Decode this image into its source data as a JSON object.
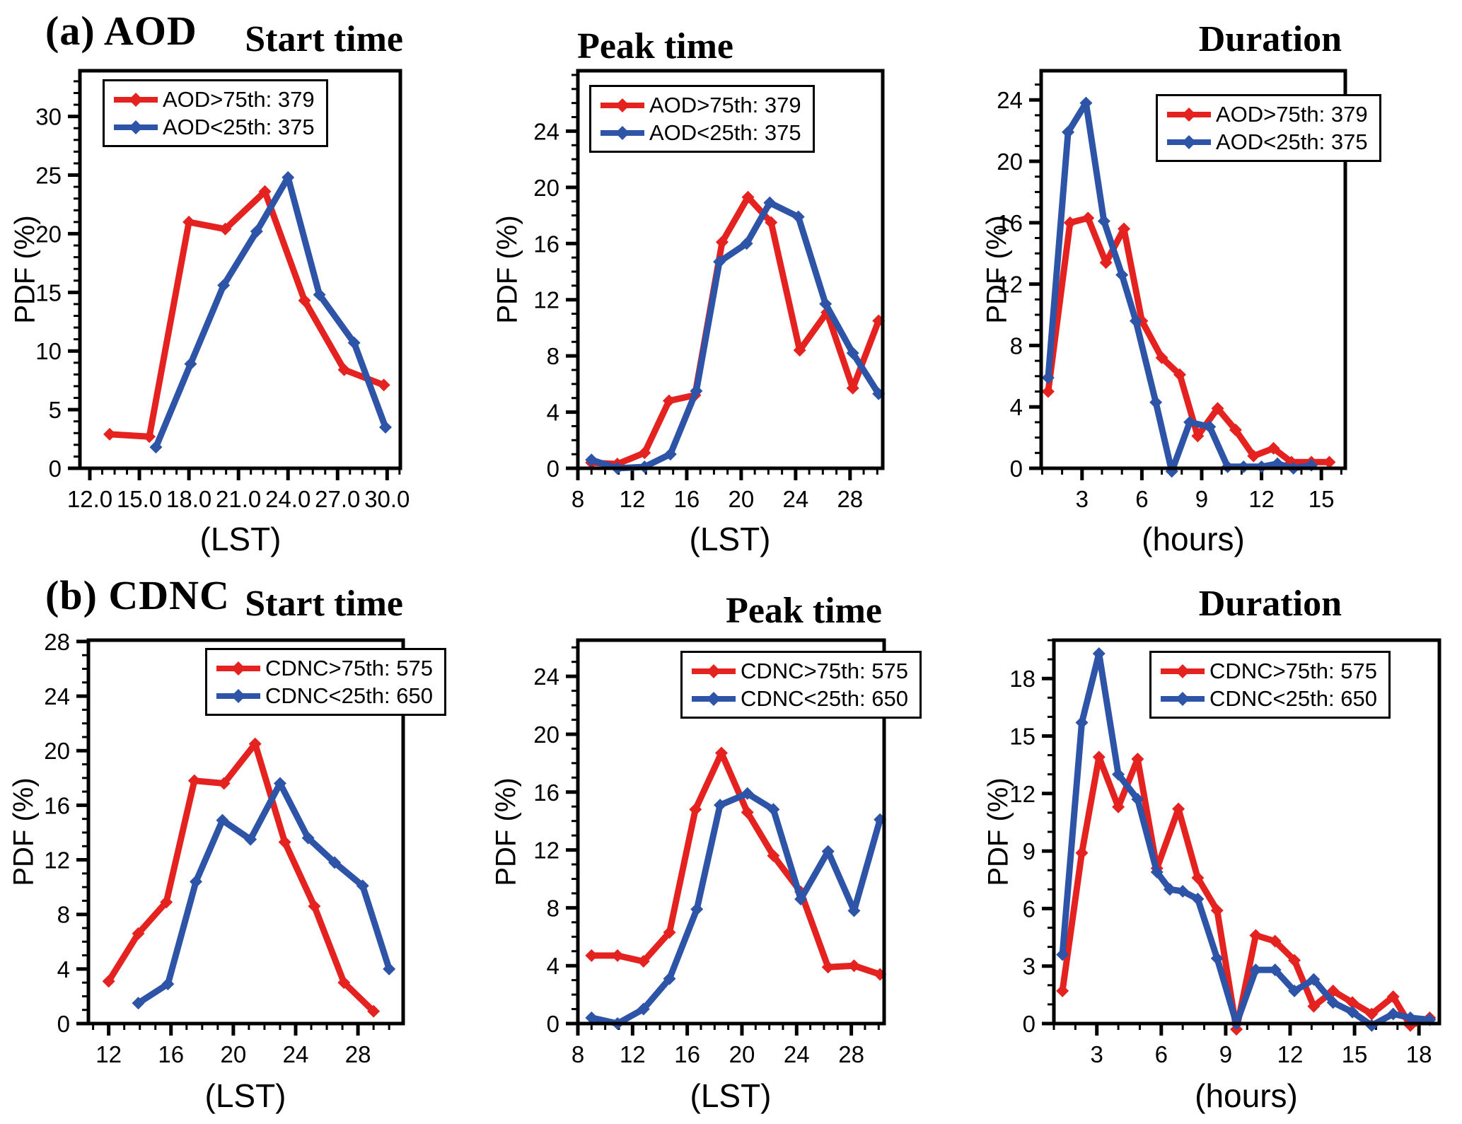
{
  "rows": [
    {
      "label": "(a) AOD"
    },
    {
      "label": "(b) CDNC"
    }
  ],
  "colors": {
    "high_series": "#e42320",
    "low_series": "#2d54a6",
    "axis": "#000000"
  },
  "chart_data": [
    {
      "id": "a-start",
      "type": "line",
      "title": "Start time",
      "xlabel": "(LST)",
      "ylabel": "PDF (%)",
      "xlim": [
        11.4,
        30.8
      ],
      "ylim": [
        0,
        33.9
      ],
      "xticks": {
        "values": [
          12,
          15,
          18,
          21,
          24,
          27,
          30
        ],
        "labels": [
          "12.0",
          "15.0",
          "18.0",
          "21.0",
          "24.0",
          "27.0",
          "30.0"
        ]
      },
      "yticks": [
        0,
        5,
        10,
        15,
        20,
        25,
        30
      ],
      "x_minor": 0.75,
      "y_minor": 1,
      "grid": false,
      "legend_pos": "top-left",
      "series": [
        {
          "name": "AOD>75th: 379",
          "color": "#e42320",
          "points": [
            [
              13.2,
              2.9
            ],
            [
              15.6,
              2.7
            ],
            [
              18.0,
              21.0
            ],
            [
              20.2,
              20.4
            ],
            [
              22.6,
              23.6
            ],
            [
              25.0,
              14.3
            ],
            [
              27.4,
              8.4
            ],
            [
              29.8,
              7.1
            ]
          ]
        },
        {
          "name": "AOD<25th: 375",
          "color": "#2d54a6",
          "points": [
            [
              16.0,
              1.8
            ],
            [
              18.1,
              8.9
            ],
            [
              20.1,
              15.6
            ],
            [
              22.1,
              20.2
            ],
            [
              24.0,
              24.8
            ],
            [
              25.9,
              14.8
            ],
            [
              28.0,
              10.7
            ],
            [
              29.9,
              3.5
            ]
          ]
        }
      ]
    },
    {
      "id": "a-peak",
      "type": "line",
      "title": "Peak time",
      "xlabel": "(LST)",
      "ylabel": "PDF (%)",
      "xlim": [
        8,
        30.4
      ],
      "ylim": [
        0,
        28.3
      ],
      "xticks": {
        "values": [
          8,
          12,
          16,
          20,
          24,
          28
        ],
        "labels": [
          "8",
          "12",
          "16",
          "20",
          "24",
          "28"
        ]
      },
      "yticks": [
        0,
        4,
        8,
        12,
        16,
        20,
        24
      ],
      "x_minor": 1,
      "y_minor": 1,
      "grid": false,
      "legend_pos": "top-left",
      "series": [
        {
          "name": "AOD>75th: 379",
          "color": "#e42320",
          "points": [
            [
              9.0,
              0.4
            ],
            [
              10.9,
              0.3
            ],
            [
              12.9,
              1.1
            ],
            [
              14.7,
              4.8
            ],
            [
              16.6,
              5.2
            ],
            [
              18.6,
              16.1
            ],
            [
              20.5,
              19.3
            ],
            [
              22.2,
              17.5
            ],
            [
              24.3,
              8.4
            ],
            [
              26.3,
              11.1
            ],
            [
              28.2,
              5.7
            ],
            [
              30.1,
              10.5
            ]
          ]
        },
        {
          "name": "AOD<25th: 375",
          "color": "#2d54a6",
          "points": [
            [
              9.0,
              0.6
            ],
            [
              10.9,
              0.0
            ],
            [
              12.9,
              0.1
            ],
            [
              14.8,
              1.0
            ],
            [
              16.7,
              5.5
            ],
            [
              18.4,
              14.7
            ],
            [
              20.4,
              16.0
            ],
            [
              22.1,
              18.9
            ],
            [
              24.2,
              17.9
            ],
            [
              26.2,
              11.7
            ],
            [
              28.2,
              8.2
            ],
            [
              30.1,
              5.3
            ]
          ]
        }
      ]
    },
    {
      "id": "a-duration",
      "type": "line",
      "title": "Duration",
      "xlabel": "(hours)",
      "ylabel": "PDF (%)",
      "xlim": [
        0.95,
        16.2
      ],
      "ylim": [
        0,
        25.9
      ],
      "xticks": {
        "values": [
          3,
          6,
          9,
          12,
          15
        ],
        "labels": [
          "3",
          "6",
          "9",
          "12",
          "15"
        ]
      },
      "yticks": [
        0,
        4,
        8,
        12,
        16,
        20,
        24
      ],
      "x_minor": 1,
      "y_minor": 1,
      "grid": false,
      "legend_pos": "top-right",
      "series": [
        {
          "name": "AOD>75th: 379",
          "color": "#e42320",
          "points": [
            [
              1.3,
              5.0
            ],
            [
              2.4,
              16.0
            ],
            [
              3.3,
              16.3
            ],
            [
              4.2,
              13.4
            ],
            [
              5.1,
              15.6
            ],
            [
              6.0,
              9.6
            ],
            [
              7.0,
              7.2
            ],
            [
              7.9,
              6.1
            ],
            [
              8.8,
              2.1
            ],
            [
              9.8,
              3.9
            ],
            [
              10.7,
              2.5
            ],
            [
              11.6,
              0.8
            ],
            [
              12.6,
              1.3
            ],
            [
              13.5,
              0.4
            ],
            [
              14.5,
              0.4
            ],
            [
              15.4,
              0.4
            ]
          ]
        },
        {
          "name": "AOD<25th: 375",
          "color": "#2d54a6",
          "points": [
            [
              1.3,
              5.9
            ],
            [
              2.3,
              21.9
            ],
            [
              3.2,
              23.8
            ],
            [
              4.1,
              16.1
            ],
            [
              5.0,
              12.6
            ],
            [
              5.7,
              9.6
            ],
            [
              6.7,
              4.3
            ],
            [
              7.5,
              -0.2
            ],
            [
              8.4,
              3.0
            ],
            [
              9.4,
              2.7
            ],
            [
              10.3,
              0.1
            ],
            [
              11.1,
              0.1
            ],
            [
              12.0,
              0.1
            ],
            [
              12.8,
              0.3
            ],
            [
              13.6,
              0.0
            ],
            [
              14.5,
              0.2
            ]
          ]
        }
      ]
    },
    {
      "id": "b-start",
      "type": "line",
      "title": "Start time",
      "xlabel": "(LST)",
      "ylabel": "PDF (%)",
      "xlim": [
        10.7,
        30.9
      ],
      "ylim": [
        0,
        28.1
      ],
      "xticks": {
        "values": [
          12,
          16,
          20,
          24,
          28
        ],
        "labels": [
          "12",
          "16",
          "20",
          "24",
          "28"
        ]
      },
      "yticks": [
        0,
        4,
        8,
        12,
        16,
        20,
        24,
        28
      ],
      "x_minor": 1,
      "y_minor": 1,
      "grid": false,
      "legend_pos": "top-right",
      "series": [
        {
          "name": "CDNC>75th: 575",
          "color": "#e42320",
          "points": [
            [
              12.0,
              3.1
            ],
            [
              13.9,
              6.6
            ],
            [
              15.7,
              8.9
            ],
            [
              17.5,
              17.8
            ],
            [
              19.4,
              17.6
            ],
            [
              21.4,
              20.5
            ],
            [
              23.3,
              13.3
            ],
            [
              25.2,
              8.6
            ],
            [
              27.1,
              3.0
            ],
            [
              29.0,
              0.9
            ]
          ]
        },
        {
          "name": "CDNC<25th: 650",
          "color": "#2d54a6",
          "points": [
            [
              13.9,
              1.5
            ],
            [
              15.8,
              2.9
            ],
            [
              17.6,
              10.4
            ],
            [
              19.3,
              14.9
            ],
            [
              21.1,
              13.5
            ],
            [
              23.0,
              17.6
            ],
            [
              24.8,
              13.6
            ],
            [
              26.5,
              11.8
            ],
            [
              28.3,
              10.1
            ],
            [
              30.0,
              4.0
            ]
          ]
        }
      ]
    },
    {
      "id": "b-peak",
      "type": "line",
      "title": "Peak time",
      "xlabel": "(LST)",
      "ylabel": "PDF (%)",
      "xlim": [
        8,
        30.4
      ],
      "ylim": [
        0,
        26.5
      ],
      "xticks": {
        "values": [
          8,
          12,
          16,
          20,
          24,
          28
        ],
        "labels": [
          "8",
          "12",
          "16",
          "20",
          "24",
          "28"
        ]
      },
      "yticks": [
        0,
        4,
        8,
        12,
        16,
        20,
        24
      ],
      "x_minor": 1,
      "y_minor": 1,
      "grid": false,
      "legend_pos": "top-right",
      "series": [
        {
          "name": "CDNC>75th: 575",
          "color": "#e42320",
          "points": [
            [
              9.0,
              4.7
            ],
            [
              10.9,
              4.7
            ],
            [
              12.8,
              4.3
            ],
            [
              14.7,
              6.3
            ],
            [
              16.6,
              14.8
            ],
            [
              18.5,
              18.7
            ],
            [
              20.4,
              14.6
            ],
            [
              22.3,
              11.6
            ],
            [
              24.3,
              9.1
            ],
            [
              26.3,
              3.9
            ],
            [
              28.2,
              4.0
            ],
            [
              30.1,
              3.4
            ]
          ]
        },
        {
          "name": "CDNC<25th: 650",
          "color": "#2d54a6",
          "points": [
            [
              9.0,
              0.4
            ],
            [
              10.9,
              0.0
            ],
            [
              12.8,
              1.0
            ],
            [
              14.7,
              3.1
            ],
            [
              16.7,
              7.9
            ],
            [
              18.4,
              15.1
            ],
            [
              20.4,
              15.9
            ],
            [
              22.3,
              14.8
            ],
            [
              24.3,
              8.6
            ],
            [
              26.3,
              11.9
            ],
            [
              28.2,
              7.8
            ],
            [
              30.1,
              14.1
            ]
          ]
        }
      ]
    },
    {
      "id": "b-duration",
      "type": "line",
      "title": "Duration",
      "xlabel": "(hours)",
      "ylabel": "PDF (%)",
      "xlim": [
        1.0,
        18.95
      ],
      "ylim": [
        0,
        20.0
      ],
      "xticks": {
        "values": [
          3,
          6,
          9,
          12,
          15,
          18
        ],
        "labels": [
          "3",
          "6",
          "9",
          "12",
          "15",
          "18"
        ]
      },
      "yticks": [
        0,
        3,
        6,
        9,
        12,
        15,
        18
      ],
      "x_minor": 1,
      "y_minor": 1,
      "grid": false,
      "legend_pos": "top-right",
      "series": [
        {
          "name": "CDNC>75th: 575",
          "color": "#e42320",
          "points": [
            [
              1.4,
              1.7
            ],
            [
              2.3,
              8.9
            ],
            [
              3.1,
              13.9
            ],
            [
              4.0,
              11.3
            ],
            [
              4.9,
              13.8
            ],
            [
              5.8,
              8.1
            ],
            [
              6.8,
              11.2
            ],
            [
              7.7,
              7.6
            ],
            [
              8.6,
              5.9
            ],
            [
              9.5,
              -0.3
            ],
            [
              10.4,
              4.6
            ],
            [
              11.3,
              4.3
            ],
            [
              12.2,
              3.3
            ],
            [
              13.1,
              0.9
            ],
            [
              14.0,
              1.7
            ],
            [
              14.9,
              1.1
            ],
            [
              15.8,
              0.5
            ],
            [
              16.8,
              1.4
            ],
            [
              17.6,
              -0.1
            ],
            [
              18.5,
              0.3
            ]
          ]
        },
        {
          "name": "CDNC<25th: 650",
          "color": "#2d54a6",
          "points": [
            [
              1.4,
              3.6
            ],
            [
              2.3,
              15.7
            ],
            [
              3.1,
              19.3
            ],
            [
              4.0,
              13.0
            ],
            [
              4.9,
              11.7
            ],
            [
              5.8,
              7.9
            ],
            [
              6.4,
              7.0
            ],
            [
              7.0,
              6.9
            ],
            [
              7.7,
              6.5
            ],
            [
              8.6,
              3.4
            ],
            [
              9.5,
              0.0
            ],
            [
              10.4,
              2.8
            ],
            [
              11.3,
              2.8
            ],
            [
              12.2,
              1.7
            ],
            [
              13.1,
              2.3
            ],
            [
              14.0,
              1.1
            ],
            [
              14.9,
              0.6
            ],
            [
              15.8,
              -0.1
            ],
            [
              16.8,
              0.5
            ],
            [
              17.6,
              0.3
            ],
            [
              18.5,
              0.2
            ]
          ]
        }
      ]
    }
  ]
}
